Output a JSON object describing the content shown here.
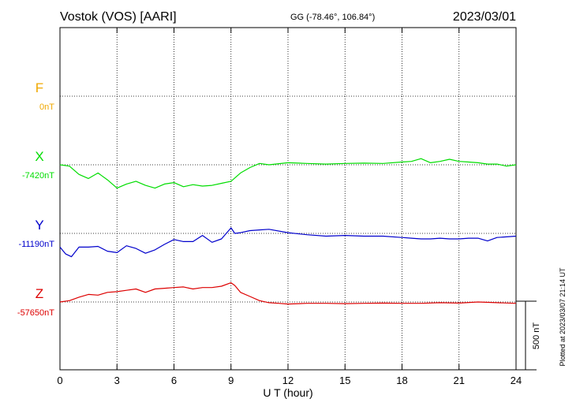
{
  "header": {
    "station": "Vostok (VOS)  [AARI]",
    "coords": "GG (-78.46°, 106.84°)",
    "date": "2023/03/01"
  },
  "side_note": "Plotted at 2023/03/07 21:14 UT",
  "chart_data": {
    "type": "line",
    "xlabel": "U T (hour)",
    "xlim": [
      0,
      24
    ],
    "xticks": [
      "0",
      "3",
      "6",
      "9",
      "12",
      "15",
      "18",
      "21",
      "24"
    ],
    "scale_bar": "500 nT",
    "colors": {
      "F": "#f0a800",
      "X": "#00dd00",
      "Y": "#0000cc",
      "Z": "#dd0000"
    },
    "series": [
      {
        "name": "F",
        "baseline_label": "0nT",
        "baseline_nT": 0,
        "x": [],
        "y": []
      },
      {
        "name": "X",
        "baseline_label": "-7420nT",
        "baseline_nT": -7420,
        "x": [
          0,
          0.5,
          1,
          1.5,
          2,
          2.5,
          3,
          3.5,
          4,
          4.5,
          5,
          5.5,
          6,
          6.5,
          7,
          7.5,
          8,
          8.5,
          9,
          9.5,
          10,
          10.5,
          11,
          12,
          13,
          14,
          15,
          16,
          17,
          18,
          18.5,
          19,
          19.5,
          20,
          20.5,
          21,
          21.5,
          22,
          22.5,
          23,
          23.5,
          24
        ],
        "y": [
          -7420,
          -7430,
          -7490,
          -7520,
          -7480,
          -7530,
          -7590,
          -7560,
          -7540,
          -7570,
          -7590,
          -7560,
          -7550,
          -7580,
          -7565,
          -7575,
          -7570,
          -7555,
          -7540,
          -7480,
          -7440,
          -7410,
          -7420,
          -7405,
          -7410,
          -7415,
          -7410,
          -7408,
          -7410,
          -7400,
          -7395,
          -7375,
          -7405,
          -7395,
          -7380,
          -7395,
          -7400,
          -7405,
          -7415,
          -7415,
          -7430,
          -7420
        ]
      },
      {
        "name": "Y",
        "baseline_label": "-11190nT",
        "baseline_nT": -11190,
        "x": [
          0,
          0.3,
          0.6,
          1,
          1.5,
          2,
          2.5,
          3,
          3.5,
          4,
          4.5,
          5,
          5.5,
          6,
          6.5,
          7,
          7.5,
          8,
          8.5,
          9,
          9.2,
          9.5,
          10,
          10.5,
          11,
          12,
          13,
          14,
          15,
          16,
          17,
          18,
          18.5,
          19,
          19.5,
          20,
          20.5,
          21,
          21.5,
          22,
          22.5,
          23,
          23.5,
          24
        ],
        "y": [
          -11290,
          -11340,
          -11360,
          -11290,
          -11290,
          -11285,
          -11320,
          -11330,
          -11280,
          -11300,
          -11335,
          -11310,
          -11270,
          -11235,
          -11250,
          -11250,
          -11205,
          -11255,
          -11230,
          -11150,
          -11190,
          -11185,
          -11170,
          -11165,
          -11160,
          -11185,
          -11200,
          -11210,
          -11205,
          -11210,
          -11210,
          -11220,
          -11225,
          -11230,
          -11230,
          -11225,
          -11230,
          -11230,
          -11225,
          -11225,
          -11245,
          -11220,
          -11215,
          -11210
        ]
      },
      {
        "name": "Z",
        "baseline_label": "-57650nT",
        "baseline_nT": -57650,
        "x": [
          0,
          0.5,
          1,
          1.5,
          2,
          2.5,
          3,
          3.5,
          4,
          4.5,
          5,
          5.5,
          6,
          6.5,
          7,
          7.5,
          8,
          8.5,
          9,
          9.2,
          9.5,
          10,
          10.5,
          11,
          11.5,
          12,
          13,
          14,
          15,
          16,
          17,
          18,
          19,
          20,
          21,
          22,
          23,
          24
        ],
        "y": [
          -57650,
          -57640,
          -57615,
          -57595,
          -57600,
          -57580,
          -57575,
          -57565,
          -57555,
          -57580,
          -57555,
          -57550,
          -57545,
          -57540,
          -57555,
          -57545,
          -57545,
          -57535,
          -57510,
          -57530,
          -57580,
          -57610,
          -57640,
          -57655,
          -57660,
          -57665,
          -57660,
          -57660,
          -57662,
          -57660,
          -57658,
          -57660,
          -57660,
          -57655,
          -57658,
          -57650,
          -57655,
          -57660
        ]
      }
    ]
  }
}
